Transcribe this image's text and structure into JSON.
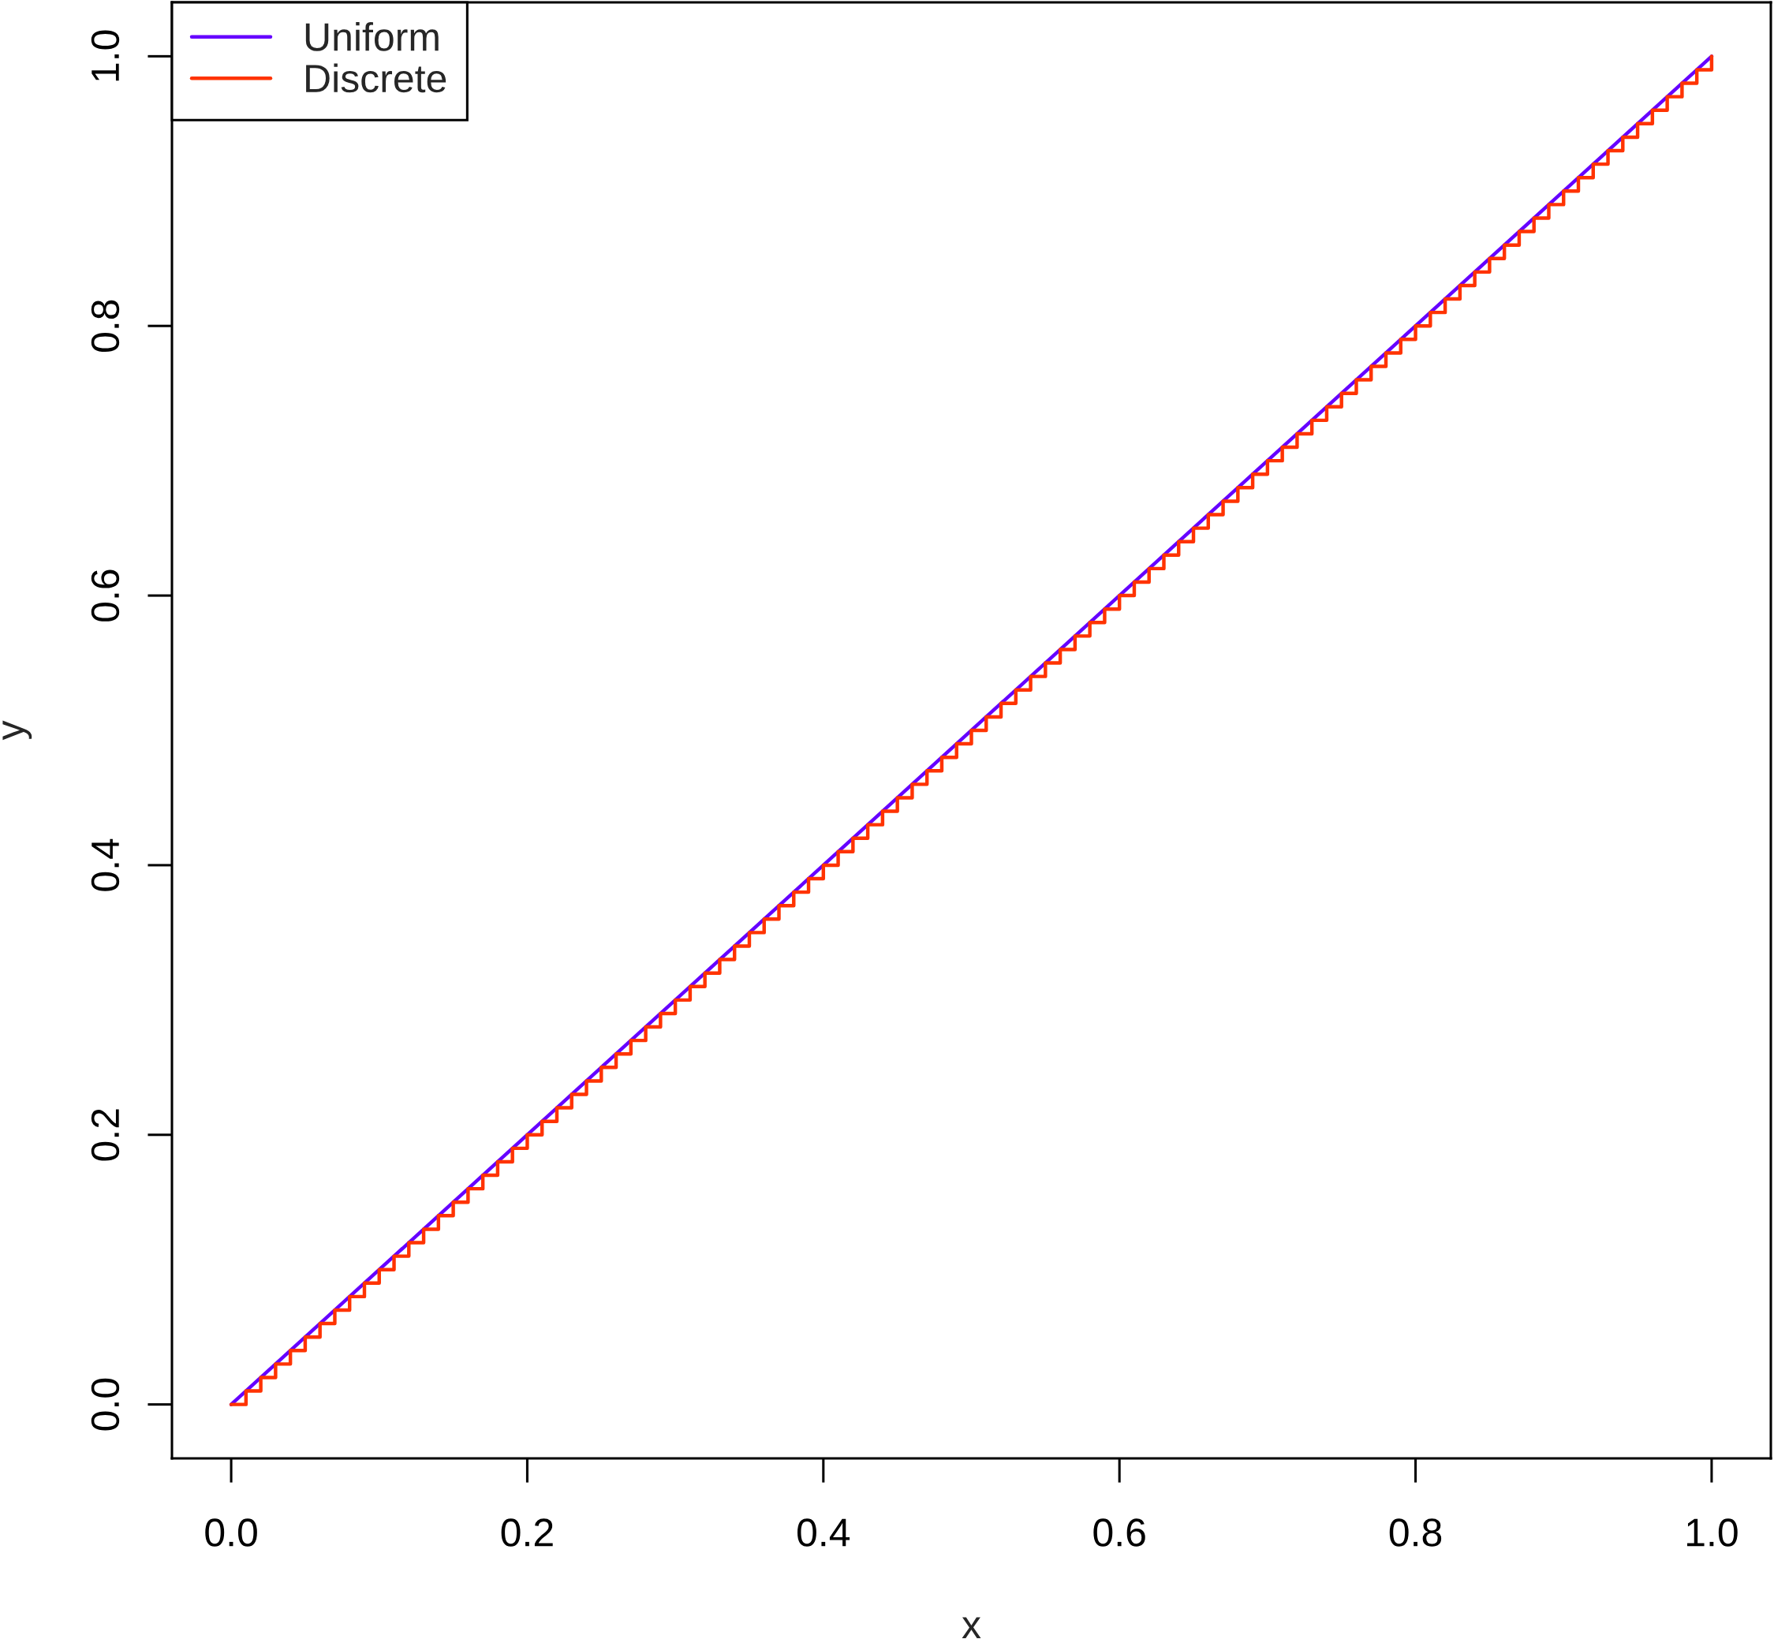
{
  "chart_data": {
    "type": "line",
    "xlabel": "x",
    "ylabel": "y",
    "xlim": [
      -0.04,
      1.04
    ],
    "ylim": [
      -0.04,
      1.04
    ],
    "xticks": [
      {
        "value": 0,
        "label": "0.0"
      },
      0.2,
      0.4,
      0.6,
      0.8,
      {
        "value": 1,
        "label": "1.0"
      }
    ],
    "yticks": [
      {
        "value": 0,
        "label": "0.0"
      },
      0.2,
      0.4,
      0.6,
      0.8,
      {
        "value": 1,
        "label": "1.0"
      }
    ],
    "legend": "top left",
    "series": [
      {
        "name": "Uniform",
        "color": "#6600ff",
        "x": [
          0,
          1
        ],
        "values": [
          0,
          1
        ]
      },
      {
        "name": "Discrete",
        "color": "#ff3300",
        "type": "step",
        "x": [
          0,
          0.01,
          0.02,
          0.03,
          0.04,
          0.05,
          0.06,
          0.07,
          0.08,
          0.09,
          0.1,
          0.11,
          0.12,
          0.13,
          0.14,
          0.15,
          0.16,
          0.17,
          0.18,
          0.19,
          0.2,
          0.21,
          0.22,
          0.23,
          0.24,
          0.25,
          0.26,
          0.27,
          0.28,
          0.29,
          0.3,
          0.31,
          0.32,
          0.33,
          0.34,
          0.35,
          0.36,
          0.37,
          0.38,
          0.39,
          0.4,
          0.41,
          0.42,
          0.43,
          0.44,
          0.45,
          0.46,
          0.47,
          0.48,
          0.49,
          0.5,
          0.51,
          0.52,
          0.53,
          0.54,
          0.55,
          0.56,
          0.57,
          0.58,
          0.59,
          0.6,
          0.61,
          0.62,
          0.63,
          0.64,
          0.65,
          0.66,
          0.67,
          0.68,
          0.69,
          0.7,
          0.71,
          0.72,
          0.73,
          0.74,
          0.75,
          0.76,
          0.77,
          0.78,
          0.79,
          0.8,
          0.81,
          0.82,
          0.83,
          0.84,
          0.85,
          0.86,
          0.87,
          0.88,
          0.89,
          0.9,
          0.91,
          0.92,
          0.93,
          0.94,
          0.95,
          0.96,
          0.97,
          0.98,
          0.99,
          1
        ],
        "values": [
          0,
          0.01,
          0.02,
          0.03,
          0.04,
          0.05,
          0.06,
          0.07,
          0.08,
          0.09,
          0.1,
          0.11,
          0.12,
          0.13,
          0.14,
          0.15,
          0.16,
          0.17,
          0.18,
          0.19,
          0.2,
          0.21,
          0.22,
          0.23,
          0.24,
          0.25,
          0.26,
          0.27,
          0.28,
          0.29,
          0.3,
          0.31,
          0.32,
          0.33,
          0.34,
          0.35,
          0.36,
          0.37,
          0.38,
          0.39,
          0.4,
          0.41,
          0.42,
          0.43,
          0.44,
          0.45,
          0.46,
          0.47,
          0.48,
          0.49,
          0.5,
          0.51,
          0.52,
          0.53,
          0.54,
          0.55,
          0.56,
          0.57,
          0.58,
          0.59,
          0.6,
          0.61,
          0.62,
          0.63,
          0.64,
          0.65,
          0.66,
          0.67,
          0.68,
          0.69,
          0.7,
          0.71,
          0.72,
          0.73,
          0.74,
          0.75,
          0.76,
          0.77,
          0.78,
          0.79,
          0.8,
          0.81,
          0.82,
          0.83,
          0.84,
          0.85,
          0.86,
          0.87,
          0.88,
          0.89,
          0.9,
          0.91,
          0.92,
          0.93,
          0.94,
          0.95,
          0.96,
          0.97,
          0.98,
          0.99,
          1
        ]
      }
    ]
  }
}
